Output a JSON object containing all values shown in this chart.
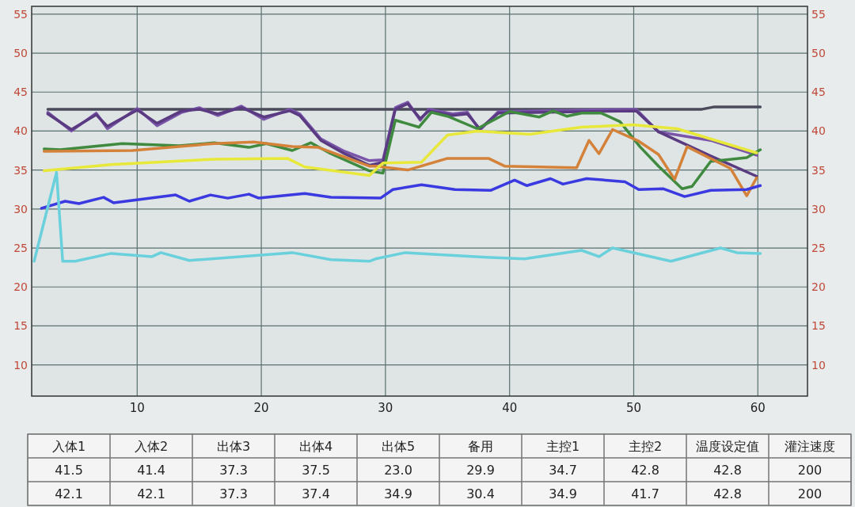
{
  "chart_data": {
    "type": "line",
    "xlim": [
      1.5,
      64
    ],
    "xticks": [
      10,
      20,
      30,
      40,
      50,
      60
    ],
    "ylim": [
      6,
      56
    ],
    "yticks": [
      10,
      15,
      20,
      25,
      30,
      35,
      40,
      45,
      50,
      55
    ],
    "y2lim": [
      6,
      56
    ],
    "y2ticks": [
      10,
      15,
      20,
      25,
      30,
      35,
      40,
      45,
      50,
      55
    ],
    "grid": true,
    "marker": "none",
    "line_style": "solid",
    "series": [
      {
        "color": "#4a4a5a",
        "x": [
          2.8,
          55.5,
          56.5,
          60.2
        ],
        "values": [
          42.8,
          42.8,
          43.1,
          43.1
        ]
      },
      {
        "color": "#7a55aa",
        "x": [
          2.8,
          4.7,
          6.7,
          7.6,
          10,
          11.6,
          13.6,
          15,
          16.5,
          18.4,
          20.2,
          22.3,
          23.1,
          24.8,
          26.7,
          28.7,
          29.8,
          30.8,
          31.8,
          32.8,
          33.5,
          35.4,
          36.6,
          37.6,
          39.1,
          50.2,
          52,
          56.2,
          59.9
        ],
        "values": [
          42.4,
          40.0,
          42.3,
          40.3,
          42.9,
          40.7,
          42.4,
          43.0,
          42.0,
          43.2,
          41.5,
          42.8,
          42.2,
          39.0,
          37.4,
          36.2,
          36.3,
          43.0,
          43.7,
          41.4,
          42.8,
          42.2,
          42.4,
          40.1,
          42.5,
          42.8,
          39.9,
          38.8,
          36.9
        ]
      },
      {
        "color": "#5a3a80",
        "x": [
          2.8,
          4.7,
          6.7,
          7.6,
          10,
          11.6,
          13.6,
          15,
          16.5,
          18.4,
          20.2,
          22.3,
          23.1,
          24.8,
          26.7,
          28.7,
          29.8,
          30.8,
          31.8,
          32.8,
          33.5,
          35.4,
          36.6,
          37.6,
          39.1,
          50.2,
          52,
          56.2,
          59.9
        ],
        "values": [
          42.2,
          40.2,
          42.1,
          40.6,
          42.7,
          41.0,
          42.6,
          42.8,
          42.2,
          43.0,
          41.8,
          42.6,
          42.0,
          38.8,
          37.1,
          35.6,
          36.0,
          42.8,
          43.5,
          41.6,
          42.6,
          42.0,
          42.2,
          40.3,
          42.3,
          42.6,
          39.9,
          36.8,
          34.2
        ]
      },
      {
        "color": "#3f8a3f",
        "x": [
          2.5,
          3.8,
          8.8,
          13.4,
          16.2,
          19,
          20.4,
          22.5,
          24,
          25.6,
          28.7,
          29.8,
          30.8,
          32.7,
          33.7,
          35,
          37.4,
          40,
          42.4,
          43.5,
          44.6,
          45.8,
          47.4,
          48.9,
          50.5,
          52,
          53.9,
          54.7,
          56.2,
          59.1,
          60.2
        ],
        "values": [
          37.7,
          37.6,
          38.4,
          38.1,
          38.5,
          37.9,
          38.4,
          37.5,
          38.5,
          37.1,
          34.9,
          34.6,
          41.4,
          40.5,
          42.4,
          41.9,
          40.3,
          42.5,
          41.8,
          42.6,
          41.9,
          42.3,
          42.3,
          41.2,
          38.0,
          35.5,
          32.6,
          32.9,
          36.1,
          36.6,
          37.6
        ]
      },
      {
        "color": "#d4823a",
        "x": [
          2.5,
          9.6,
          16.2,
          19.4,
          22.5,
          24.6,
          28.7,
          29.2,
          31.8,
          35,
          38.3,
          39.6,
          45.4,
          46.4,
          47.2,
          48.3,
          50.4,
          52,
          53.3,
          54.3,
          57.8,
          59.1,
          59.9
        ],
        "values": [
          37.4,
          37.5,
          38.4,
          38.6,
          38.0,
          37.9,
          35.5,
          35.5,
          35.0,
          36.5,
          36.5,
          35.5,
          35.3,
          38.8,
          37.1,
          40.2,
          38.7,
          37.0,
          33.8,
          38.0,
          35.2,
          31.7,
          34.0
        ]
      },
      {
        "color": "#e8e83a",
        "x": [
          2.5,
          7.9,
          16.2,
          22.1,
          23.5,
          28.7,
          29.8,
          32.9,
          35,
          37.4,
          41.6,
          45.8,
          49.9,
          53.5,
          59.9
        ],
        "values": [
          34.9,
          35.7,
          36.4,
          36.5,
          35.4,
          34.3,
          35.9,
          36.0,
          39.5,
          40.0,
          39.6,
          40.5,
          40.8,
          40.3,
          37.2
        ]
      },
      {
        "color": "#3a3ae0",
        "x": [
          2.3,
          4.2,
          5.3,
          7.3,
          8.1,
          13.1,
          14.2,
          15.9,
          17.3,
          19,
          19.8,
          23.5,
          25.6,
          29.6,
          30.6,
          32.9,
          35.6,
          38.5,
          40.4,
          41.4,
          43.3,
          44.3,
          46.2,
          49.3,
          50.4,
          52.4,
          54.1,
          56.2,
          59.1,
          60.2
        ],
        "values": [
          30.1,
          31.0,
          30.7,
          31.5,
          30.8,
          31.8,
          31.0,
          31.8,
          31.4,
          31.9,
          31.4,
          32.0,
          31.5,
          31.4,
          32.5,
          33.1,
          32.5,
          32.4,
          33.7,
          33.0,
          33.9,
          33.2,
          33.9,
          33.5,
          32.5,
          32.6,
          31.6,
          32.4,
          32.5,
          33.0
        ]
      },
      {
        "color": "#6ad0dc",
        "x": [
          1.7,
          3.5,
          4.0,
          5,
          7.9,
          11.2,
          11.9,
          14.2,
          22.5,
          25.6,
          28.7,
          29.2,
          31.6,
          38.1,
          41.2,
          45.8,
          47.2,
          48.3,
          53,
          57,
          58.3,
          60.2
        ],
        "values": [
          23.3,
          34.7,
          23.3,
          23.3,
          24.3,
          23.9,
          24.4,
          23.4,
          24.4,
          23.5,
          23.3,
          23.6,
          24.4,
          23.8,
          23.6,
          24.7,
          23.9,
          25.0,
          23.3,
          25.0,
          24.4,
          24.3
        ]
      }
    ],
    "annotations": [
      "入体1",
      "入体2",
      "出体3",
      "出体4",
      "出体5",
      "备用",
      "主控1",
      "主控2",
      "温度设定值",
      "灌注速度",
      "41.5",
      "41.4",
      "37.3",
      "37.5",
      "23.0",
      "29.9",
      "34.7",
      "42.8",
      "42.8",
      "200",
      "42.1",
      "42.1",
      "37.3",
      "37.4",
      "34.9",
      "30.4",
      "34.9",
      "41.7",
      "42.8",
      "200"
    ]
  }
}
